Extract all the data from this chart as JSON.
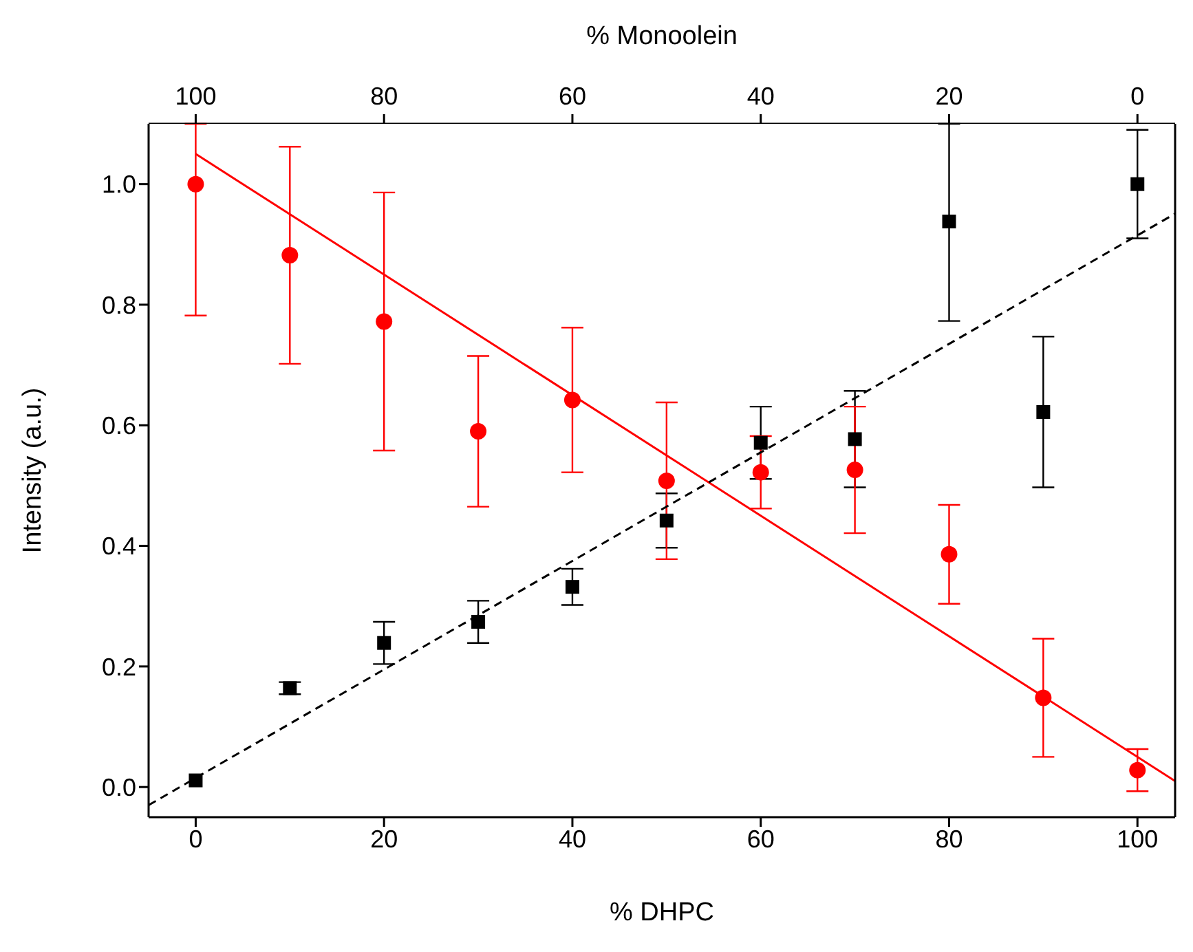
{
  "chart_data": {
    "type": "scatter",
    "xlabel": "% DHPC",
    "ylabel": "Intensity (a.u.)",
    "x2label": "% Monoolein",
    "xlim": [
      -5,
      104
    ],
    "xticks": [
      0,
      20,
      40,
      60,
      80,
      100
    ],
    "x2lim": [
      105,
      -4
    ],
    "x2ticks": [
      100,
      80,
      60,
      40,
      20,
      0
    ],
    "ylim": [
      -0.05,
      1.1
    ],
    "yticks": [
      {
        "value": 0,
        "label": "0.0"
      },
      {
        "value": 0.2,
        "label": "0.2"
      },
      {
        "value": 0.4,
        "label": "0.4"
      },
      {
        "value": 0.6,
        "label": "0.6"
      },
      {
        "value": 0.8,
        "label": "0.8"
      },
      {
        "value": 1,
        "label": "1.0"
      }
    ],
    "series": [
      {
        "marker": "square",
        "color": "#000000",
        "x": [
          0,
          10,
          20,
          30,
          40,
          50,
          60,
          70,
          80,
          90,
          100
        ],
        "values": [
          0.011,
          0.164,
          0.239,
          0.274,
          0.332,
          0.442,
          0.571,
          0.577,
          0.938,
          0.622,
          1.0
        ],
        "errors": [
          null,
          0.01,
          0.035,
          0.035,
          0.03,
          0.045,
          0.06,
          0.08,
          [
            0.773,
            1.1
          ],
          0.125,
          0.09
        ]
      },
      {
        "marker": "circle",
        "color": "#ff0000",
        "x": [
          0,
          10,
          20,
          30,
          40,
          50,
          60,
          70,
          80,
          90,
          100
        ],
        "values": [
          1.0,
          0.882,
          0.772,
          0.59,
          0.642,
          0.508,
          0.522,
          0.526,
          0.386,
          0.148,
          0.028
        ],
        "errors": [
          [
            0.782,
            1.1
          ],
          0.18,
          0.214,
          0.125,
          0.12,
          0.13,
          0.06,
          0.105,
          0.082,
          0.098,
          0.035
        ]
      },
      {
        "type": "line",
        "line_style": "solid",
        "color": "#ff0000",
        "x": [
          0,
          104
        ],
        "values": [
          1.05,
          0.01
        ]
      },
      {
        "type": "line",
        "line_style": "dashed",
        "color": "#000000",
        "x": [
          -5,
          104
        ],
        "values": [
          -0.03,
          0.951
        ]
      }
    ]
  }
}
